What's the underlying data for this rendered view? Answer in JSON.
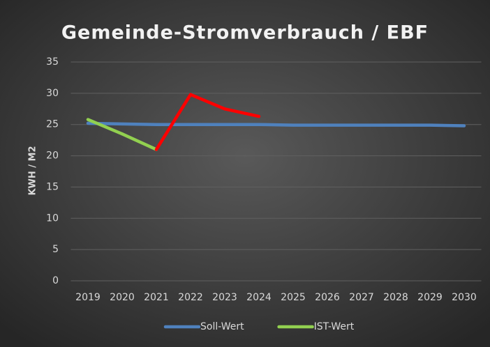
{
  "chart_data": {
    "type": "line",
    "title": "Gemeinde-Stromverbrauch / EBF",
    "y_label": "KWH / M2",
    "categories": [
      "2019",
      "2020",
      "2021",
      "2022",
      "2023",
      "2024",
      "2025",
      "2026",
      "2027",
      "2028",
      "2029",
      "2030"
    ],
    "series": [
      {
        "name": "Soll-Wert",
        "color": "#4f81bd",
        "values": [
          25.2,
          25.1,
          25,
          25,
          25,
          25,
          24.9,
          24.9,
          24.9,
          24.9,
          24.9,
          24.8
        ]
      },
      {
        "name": "IST-Wert",
        "color": "#92d050",
        "segment_colors": [
          "#92d050",
          "#92d050",
          "#ff0000",
          "#ff0000",
          "#ff0000"
        ],
        "values": [
          25.8,
          23.5,
          21,
          29.8,
          27.5,
          26.3,
          null,
          null,
          null,
          null,
          null,
          null
        ]
      }
    ],
    "ylim": [
      0,
      35
    ],
    "yticks": [
      0,
      5,
      10,
      15,
      20,
      25,
      30,
      35
    ],
    "grid": true,
    "legend": "bottom"
  }
}
